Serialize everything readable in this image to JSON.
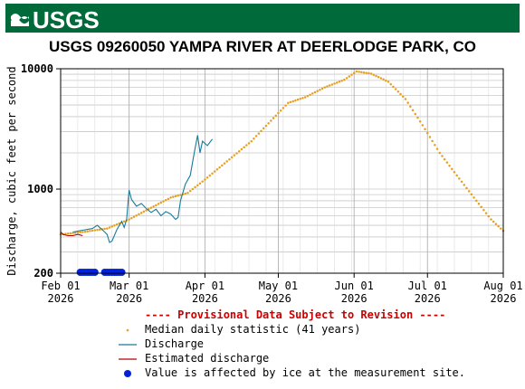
{
  "header": {
    "logo_text": "USGS",
    "brand_color": "#006a3b"
  },
  "chart_data": {
    "type": "line",
    "title": "USGS 09260050 YAMPA RIVER AT DEERLODGE PARK, CO",
    "ylabel": "Discharge, cubic feet per second",
    "xlabel": "",
    "yscale": "log",
    "ylim": [
      200,
      10000
    ],
    "xlim": [
      "2026-02-01",
      "2026-08-01"
    ],
    "y_tick_labels": [
      "200",
      "1000",
      "10000"
    ],
    "x_ticks": [
      {
        "date": "2026-02-01",
        "label1": "Feb 01",
        "label2": "2026"
      },
      {
        "date": "2026-03-01",
        "label1": "Mar 01",
        "label2": "2026"
      },
      {
        "date": "2026-04-01",
        "label1": "Apr 01",
        "label2": "2026"
      },
      {
        "date": "2026-05-01",
        "label1": "May 01",
        "label2": "2026"
      },
      {
        "date": "2026-06-01",
        "label1": "Jun 01",
        "label2": "2026"
      },
      {
        "date": "2026-07-01",
        "label1": "Jul 01",
        "label2": "2026"
      },
      {
        "date": "2026-08-01",
        "label1": "Aug 01",
        "label2": "2026"
      }
    ],
    "grid": true,
    "series": [
      {
        "name": "Median daily statistic (41 years)",
        "style": "dots",
        "color": "#e6a020",
        "points": [
          [
            "2026-02-01",
            420
          ],
          [
            "2026-02-10",
            440
          ],
          [
            "2026-02-20",
            470
          ],
          [
            "2026-03-01",
            560
          ],
          [
            "2026-03-10",
            700
          ],
          [
            "2026-03-18",
            850
          ],
          [
            "2026-03-25",
            930
          ],
          [
            "2026-04-01",
            1200
          ],
          [
            "2026-04-10",
            1700
          ],
          [
            "2026-04-20",
            2500
          ],
          [
            "2026-04-28",
            3700
          ],
          [
            "2026-05-05",
            5200
          ],
          [
            "2026-05-12",
            5800
          ],
          [
            "2026-05-20",
            7000
          ],
          [
            "2026-05-28",
            8100
          ],
          [
            "2026-06-02",
            9500
          ],
          [
            "2026-06-08",
            9100
          ],
          [
            "2026-06-15",
            7800
          ],
          [
            "2026-06-22",
            5600
          ],
          [
            "2026-06-29",
            3400
          ],
          [
            "2026-07-06",
            2000
          ],
          [
            "2026-07-13",
            1300
          ],
          [
            "2026-07-20",
            850
          ],
          [
            "2026-07-27",
            560
          ],
          [
            "2026-08-01",
            450
          ]
        ]
      },
      {
        "name": "Discharge",
        "style": "line",
        "color": "#1a7a9a",
        "points": [
          [
            "2026-02-06",
            440
          ],
          [
            "2026-02-10",
            455
          ],
          [
            "2026-02-14",
            470
          ],
          [
            "2026-02-16",
            500
          ],
          [
            "2026-02-18",
            460
          ],
          [
            "2026-02-20",
            420
          ],
          [
            "2026-02-21",
            360
          ],
          [
            "2026-02-22",
            370
          ],
          [
            "2026-02-24",
            460
          ],
          [
            "2026-02-26",
            540
          ],
          [
            "2026-02-27",
            480
          ],
          [
            "2026-02-28",
            560
          ],
          [
            "2026-03-01",
            980
          ],
          [
            "2026-03-02",
            820
          ],
          [
            "2026-03-04",
            720
          ],
          [
            "2026-03-06",
            760
          ],
          [
            "2026-03-08",
            690
          ],
          [
            "2026-03-10",
            640
          ],
          [
            "2026-03-12",
            680
          ],
          [
            "2026-03-14",
            600
          ],
          [
            "2026-03-16",
            650
          ],
          [
            "2026-03-18",
            620
          ],
          [
            "2026-03-20",
            560
          ],
          [
            "2026-03-21",
            580
          ],
          [
            "2026-03-22",
            800
          ],
          [
            "2026-03-24",
            1100
          ],
          [
            "2026-03-26",
            1300
          ],
          [
            "2026-03-27",
            1700
          ],
          [
            "2026-03-28",
            2200
          ],
          [
            "2026-03-29",
            2800
          ],
          [
            "2026-03-30",
            2000
          ],
          [
            "2026-03-31",
            2500
          ],
          [
            "2026-04-02",
            2300
          ],
          [
            "2026-04-04",
            2600
          ]
        ]
      },
      {
        "name": "Estimated discharge",
        "style": "line",
        "color": "#b00000",
        "points": [
          [
            "2026-02-01",
            440
          ],
          [
            "2026-02-02",
            420
          ],
          [
            "2026-02-04",
            410
          ],
          [
            "2026-02-06",
            410
          ],
          [
            "2026-02-08",
            420
          ],
          [
            "2026-02-10",
            410
          ]
        ]
      },
      {
        "name": "Value is affected by ice at the measurement site.",
        "style": "ice",
        "color": "#0022dd",
        "ranges": [
          [
            "2026-02-09",
            "2026-02-15"
          ],
          [
            "2026-02-19",
            "2026-02-26"
          ]
        ]
      }
    ],
    "legend_placement": "bottom",
    "provisional_note": "---- Provisional Data Subject to Revision ----"
  }
}
